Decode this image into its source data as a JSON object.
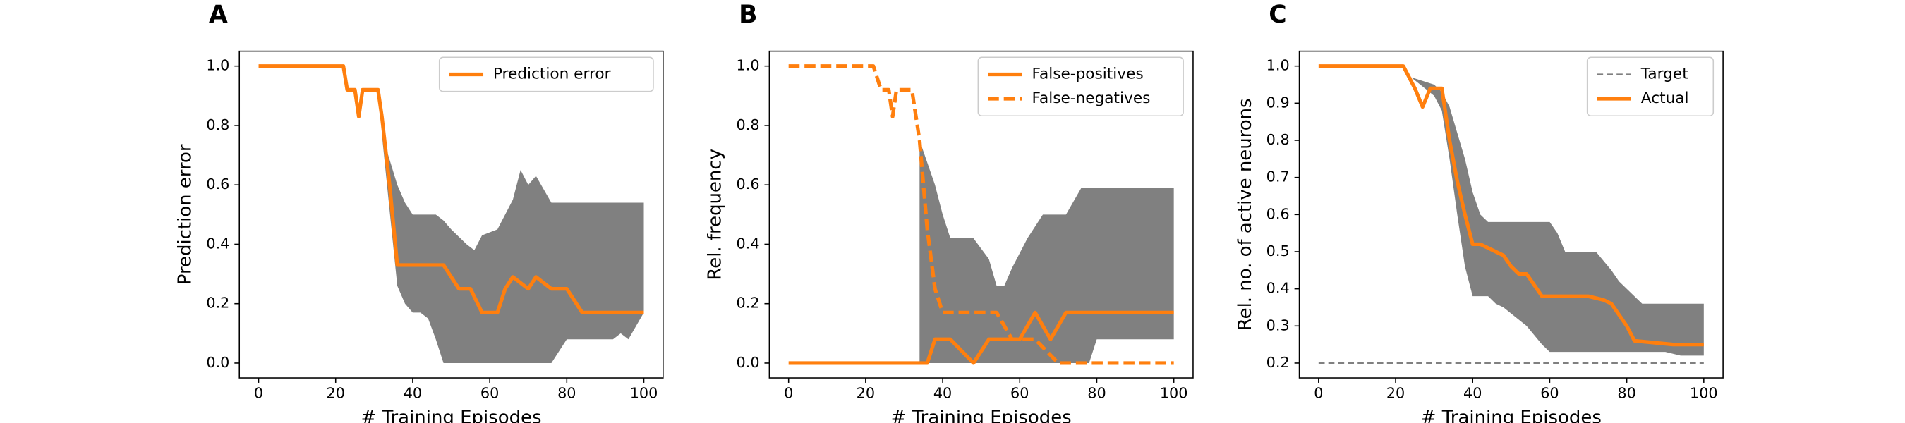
{
  "chart_data": [
    {
      "type": "line",
      "label": "A",
      "xlabel": "# Training Episodes",
      "ylabel": "Prediction error",
      "xlim": [
        -5,
        105
      ],
      "ylim": [
        -0.05,
        1.05
      ],
      "xticks": [
        0,
        20,
        40,
        60,
        80,
        100
      ],
      "yticks": [
        {
          "value": 0,
          "label": "0.0"
        },
        0.2,
        0.4,
        0.6,
        0.8,
        {
          "value": 1,
          "label": "1.0"
        }
      ],
      "legend": "upper right",
      "bands": [
        {
          "color": "#808080",
          "x": [
            32,
            36,
            38,
            40,
            42,
            44,
            46,
            48,
            50,
            54,
            56,
            58,
            62,
            66,
            68,
            70,
            72,
            76,
            80,
            92,
            94,
            96,
            100
          ],
          "upper": [
            0.77,
            0.6,
            0.54,
            0.5,
            0.5,
            0.5,
            0.5,
            0.48,
            0.45,
            0.4,
            0.38,
            0.43,
            0.45,
            0.55,
            0.65,
            0.6,
            0.63,
            0.54,
            0.54,
            0.54,
            0.54,
            0.54,
            0.54
          ],
          "lower": [
            0.77,
            0.26,
            0.2,
            0.17,
            0.17,
            0.15,
            0.08,
            0,
            0,
            0,
            0,
            0,
            0,
            0,
            0,
            0,
            0,
            0,
            0.08,
            0.08,
            0.1,
            0.08,
            0.17
          ]
        }
      ],
      "series": [
        {
          "name": "Prediction error",
          "color": "#ff7f0e",
          "style": "solid",
          "x": [
            0,
            22,
            23,
            25,
            26,
            27,
            29,
            31,
            32,
            34,
            36,
            40,
            48,
            52,
            55,
            58,
            62,
            64,
            66,
            70,
            72,
            76,
            80,
            84,
            100
          ],
          "values": [
            1,
            1,
            0.92,
            0.92,
            0.83,
            0.92,
            0.92,
            0.92,
            0.83,
            0.6,
            0.33,
            0.33,
            0.33,
            0.25,
            0.25,
            0.17,
            0.17,
            0.25,
            0.29,
            0.25,
            0.29,
            0.25,
            0.25,
            0.17,
            0.17
          ]
        }
      ]
    },
    {
      "type": "line",
      "label": "B",
      "xlabel": "# Training Episodes",
      "ylabel": "Rel. frequency",
      "xlim": [
        -5,
        105
      ],
      "ylim": [
        -0.05,
        1.05
      ],
      "xticks": [
        0,
        20,
        40,
        60,
        80,
        100
      ],
      "yticks": [
        {
          "value": 0,
          "label": "0.0"
        },
        0.2,
        0.4,
        0.6,
        0.8,
        {
          "value": 1,
          "label": "1.0"
        }
      ],
      "legend": "upper right",
      "bands": [
        {
          "color": "#808080",
          "x": [
            34,
            38,
            40,
            42,
            48,
            52,
            54,
            56,
            58,
            62,
            66,
            72,
            76,
            78,
            80,
            100
          ],
          "upper": [
            0.75,
            0.6,
            0.5,
            0.42,
            0.42,
            0.35,
            0.26,
            0.26,
            0.32,
            0.42,
            0.5,
            0.5,
            0.59,
            0.59,
            0.59,
            0.59
          ],
          "lower": [
            0,
            0,
            0,
            0,
            0,
            0,
            0,
            0,
            0,
            0,
            0,
            0,
            0,
            0,
            0.08,
            0.08
          ]
        }
      ],
      "series": [
        {
          "name": "False-positives",
          "color": "#ff7f0e",
          "style": "solid",
          "x": [
            0,
            36,
            38,
            42,
            48,
            52,
            60,
            64,
            68,
            72,
            100
          ],
          "values": [
            0,
            0,
            0.08,
            0.08,
            0,
            0.08,
            0.08,
            0.17,
            0.08,
            0.17,
            0.17
          ]
        },
        {
          "name": "False-negatives",
          "color": "#ff7f0e",
          "style": "dashed",
          "x": [
            0,
            22,
            24,
            26,
            27,
            28,
            32,
            34,
            36,
            38,
            40,
            54,
            58,
            64,
            70,
            100
          ],
          "values": [
            1,
            1,
            0.92,
            0.92,
            0.83,
            0.92,
            0.92,
            0.75,
            0.45,
            0.25,
            0.17,
            0.17,
            0.08,
            0.08,
            0,
            0
          ]
        }
      ]
    },
    {
      "type": "line",
      "label": "C",
      "xlabel": "# Training Episodes",
      "ylabel": "Rel. no. of active neurons",
      "xlim": [
        -5,
        105
      ],
      "ylim": [
        0.16,
        1.04
      ],
      "xticks": [
        0,
        20,
        40,
        60,
        80,
        100
      ],
      "yticks": [
        0.2,
        0.3,
        0.4,
        0.5,
        0.6,
        0.7,
        0.8,
        0.9,
        {
          "value": 1,
          "label": "1.0"
        }
      ],
      "legend": "upper right",
      "bands": [
        {
          "color": "#808080",
          "x": [
            22,
            24,
            30,
            32,
            34,
            36,
            38,
            40,
            42,
            44,
            46,
            48,
            54,
            58,
            60,
            62,
            64,
            72,
            76,
            78,
            84,
            90,
            94,
            100
          ],
          "upper": [
            1,
            0.97,
            0.95,
            0.93,
            0.89,
            0.82,
            0.75,
            0.66,
            0.6,
            0.58,
            0.58,
            0.58,
            0.58,
            0.58,
            0.58,
            0.55,
            0.5,
            0.5,
            0.45,
            0.42,
            0.36,
            0.36,
            0.36,
            0.36
          ],
          "lower": [
            1,
            0.97,
            0.92,
            0.88,
            0.75,
            0.6,
            0.46,
            0.38,
            0.38,
            0.38,
            0.36,
            0.35,
            0.3,
            0.25,
            0.23,
            0.23,
            0.23,
            0.23,
            0.23,
            0.23,
            0.23,
            0.23,
            0.22,
            0.22
          ]
        }
      ],
      "series": [
        {
          "name": "Target",
          "color": "#808080",
          "style": "thin-dashed",
          "x": [
            0,
            100
          ],
          "values": [
            0.2,
            0.2
          ]
        },
        {
          "name": "Actual",
          "color": "#ff7f0e",
          "style": "solid",
          "x": [
            0,
            22,
            25,
            27,
            29,
            32,
            34,
            36,
            38,
            40,
            42,
            46,
            48,
            50,
            52,
            54,
            56,
            58,
            70,
            74,
            76,
            80,
            82,
            92,
            100
          ],
          "values": [
            1,
            1,
            0.94,
            0.89,
            0.94,
            0.94,
            0.8,
            0.69,
            0.6,
            0.52,
            0.52,
            0.5,
            0.49,
            0.46,
            0.44,
            0.44,
            0.41,
            0.38,
            0.38,
            0.37,
            0.36,
            0.3,
            0.26,
            0.25,
            0.25
          ]
        }
      ]
    }
  ]
}
